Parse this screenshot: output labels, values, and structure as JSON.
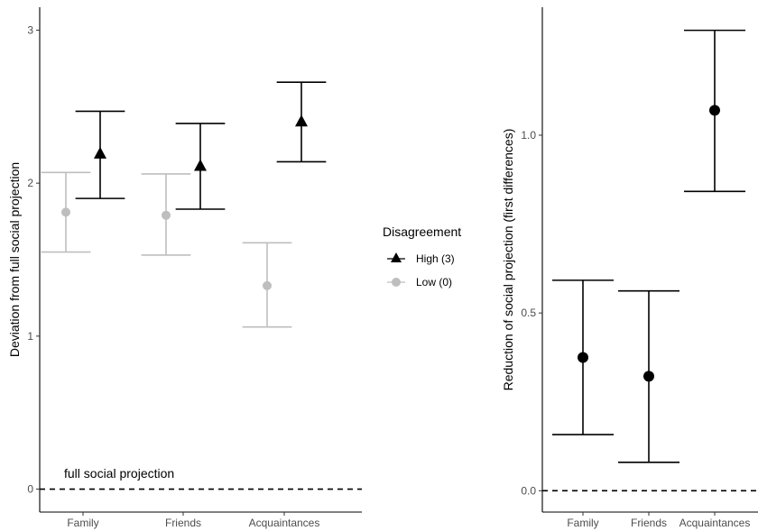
{
  "chart_data": [
    {
      "type": "scatter",
      "subtype": "errorbar",
      "categories": [
        "Family",
        "Friends",
        "Acquaintances"
      ],
      "ylabel": "Deviation from full social projection",
      "xlabel": "",
      "ylim": [
        -0.15,
        3.15
      ],
      "yticks": [
        "0",
        "1",
        "2",
        "3"
      ],
      "reference_line": {
        "y": 0,
        "style": "dashed",
        "label": "full social projection"
      },
      "series": [
        {
          "name": "High (3)",
          "color": "#000000",
          "marker": "triangle",
          "estimates": [
            2.19,
            2.11,
            2.4
          ],
          "lower": [
            1.9,
            1.83,
            2.14
          ],
          "upper": [
            2.47,
            2.39,
            2.66
          ]
        },
        {
          "name": "Low (0)",
          "color": "#bebebe",
          "marker": "circle",
          "estimates": [
            1.81,
            1.79,
            1.33
          ],
          "lower": [
            1.55,
            1.53,
            1.06
          ],
          "upper": [
            2.07,
            2.06,
            1.61
          ]
        }
      ],
      "legend": {
        "title": "Disagreement",
        "position": "right"
      }
    },
    {
      "type": "scatter",
      "subtype": "errorbar",
      "categories": [
        "Family",
        "Friends",
        "Acquaintances"
      ],
      "ylabel": "Reduction of social projection (first differences)",
      "xlabel": "",
      "ylim": [
        -0.06,
        1.36
      ],
      "yticks": [
        "0.0",
        "0.5",
        "1.0"
      ],
      "reference_line": {
        "y": 0,
        "style": "dashed"
      },
      "series": [
        {
          "color": "#000000",
          "marker": "circle",
          "estimates": [
            0.375,
            0.322,
            1.07
          ],
          "lower": [
            0.158,
            0.08,
            0.842
          ],
          "upper": [
            0.592,
            0.562,
            1.295
          ]
        }
      ]
    }
  ]
}
